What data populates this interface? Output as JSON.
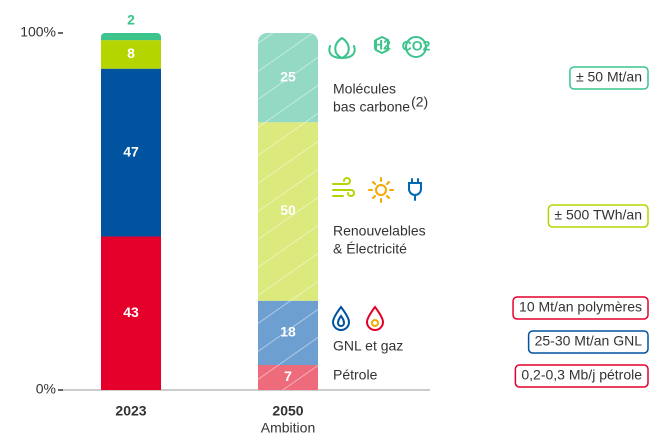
{
  "chart_data": {
    "type": "bar",
    "stacked": true,
    "categories": [
      "2023",
      "2050"
    ],
    "category_subtitles": [
      null,
      "Ambition"
    ],
    "ylim": [
      0,
      100
    ],
    "yticks": [
      {
        "value": 0,
        "label": "0%"
      },
      {
        "value": 100,
        "label": "100%"
      }
    ],
    "grid": false,
    "hatched_categories": [
      false,
      true
    ],
    "series": [
      {
        "name": [
          "Pétrole"
        ],
        "colors": [
          "#e4002b",
          "#ee6b7b"
        ],
        "values": [
          43,
          7
        ]
      },
      {
        "name": [
          "GNL et gaz"
        ],
        "colors": [
          "#00539f",
          "#6d9fd1"
        ],
        "values": [
          47,
          18
        ]
      },
      {
        "name": [
          "Renouvelables",
          "& Électricité"
        ],
        "colors": [
          "#b4d500",
          "#dce97c"
        ],
        "values": [
          8,
          50
        ]
      },
      {
        "name": [
          "Molécules",
          "bas carbone"
        ],
        "name_note": "(2)",
        "colors": [
          "#3cc48c",
          "#93d9c4"
        ],
        "values": [
          2,
          25
        ]
      }
    ],
    "annotations": [
      {
        "text": "± 50 Mt/an",
        "color": "#3cc48c"
      },
      {
        "text": "± 500 TWh/an",
        "color": "#b4d500"
      },
      {
        "text": "10 Mt/an polymères",
        "color": "#e4002b"
      },
      {
        "text": "25-30 Mt/an GNL",
        "color": "#00539f"
      },
      {
        "text": "0,2-0,3 Mb/j pétrole",
        "color": "#e4002b"
      }
    ]
  }
}
